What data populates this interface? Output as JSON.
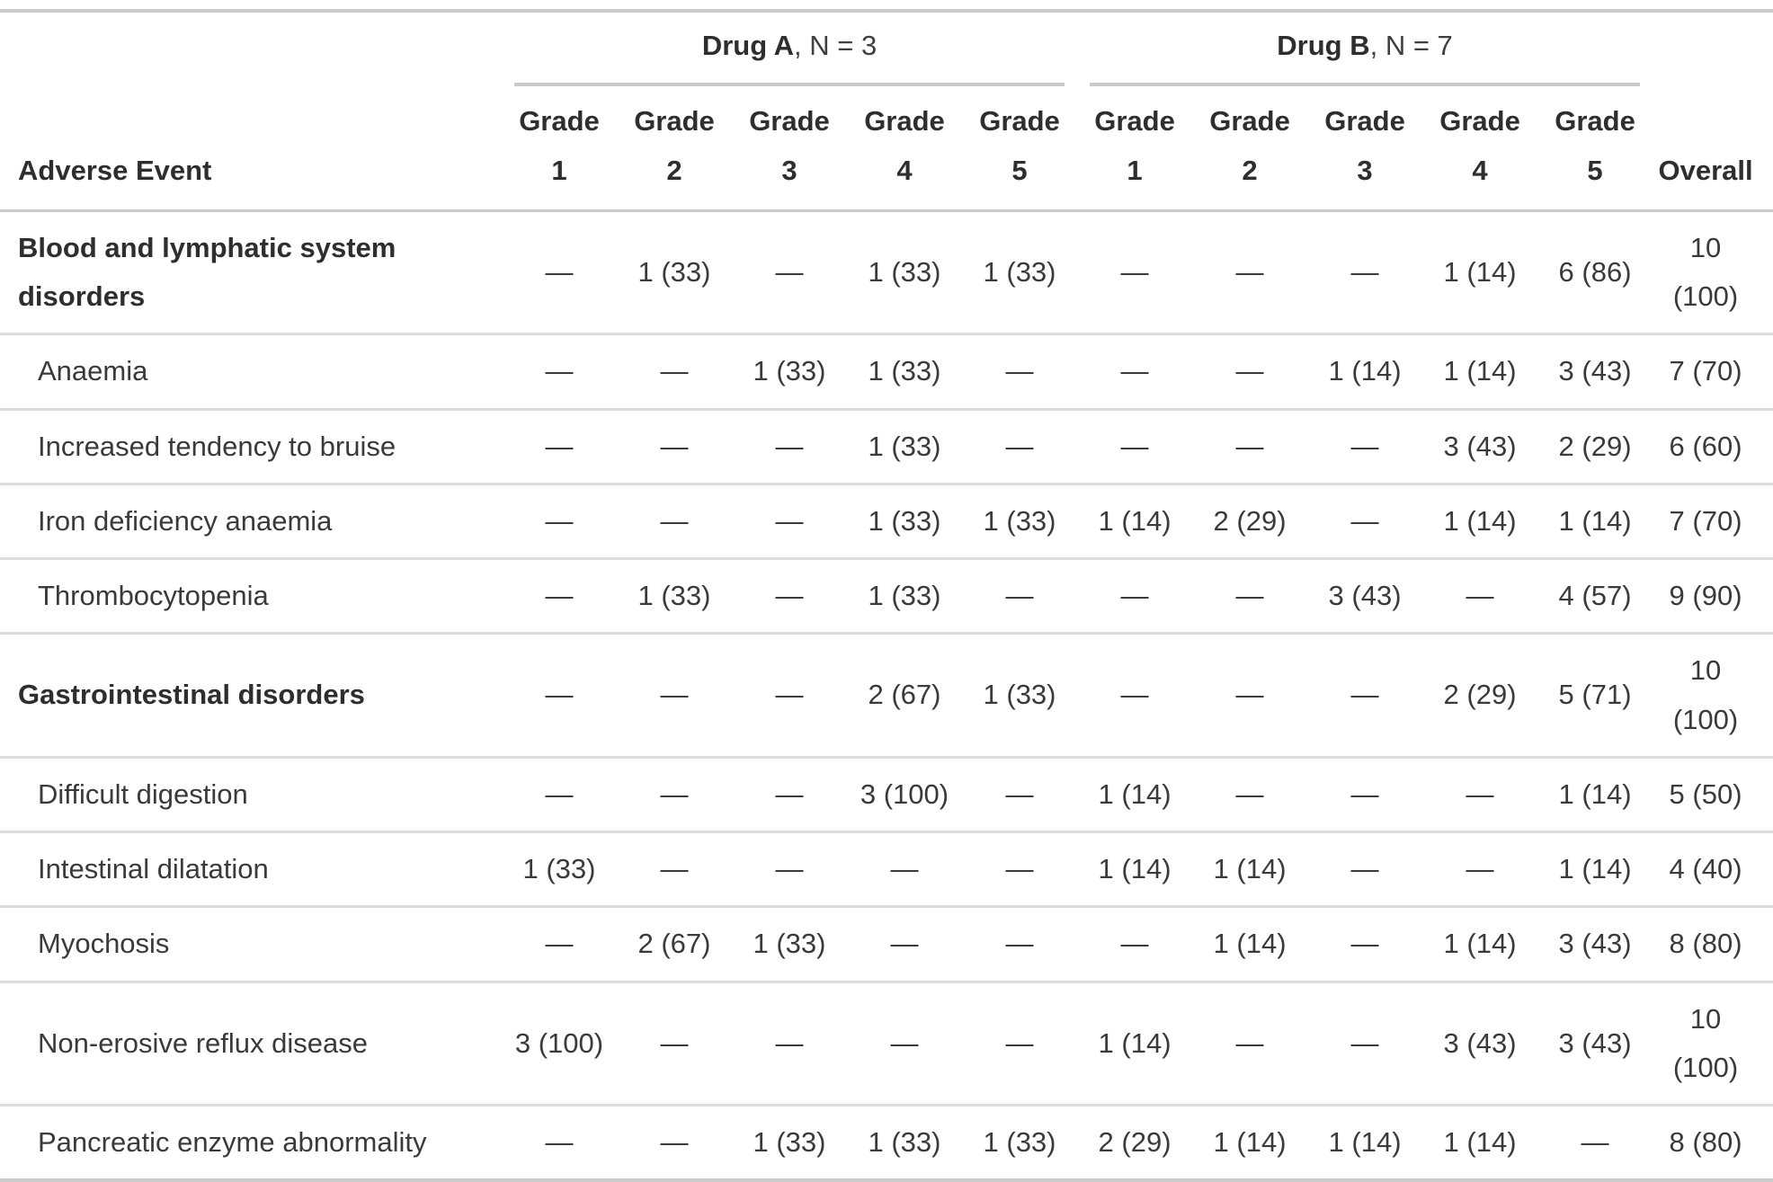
{
  "table": {
    "columns": {
      "row_label": "Adverse Event",
      "grade_labels": [
        "Grade 1",
        "Grade 2",
        "Grade 3",
        "Grade 4",
        "Grade 5"
      ],
      "overall": "Overall"
    },
    "spanners": [
      {
        "name": "Drug A",
        "n_label": ", N = 3"
      },
      {
        "name": "Drug B",
        "n_label": ", N = 7"
      }
    ],
    "rows": [
      {
        "type": "group",
        "label": "Blood and lymphatic system disorders",
        "drug_a": [
          "—",
          "1 (33)",
          "—",
          "1 (33)",
          "1 (33)"
        ],
        "drug_b": [
          "—",
          "—",
          "—",
          "1 (14)",
          "6 (86)"
        ],
        "overall": "10 (100)"
      },
      {
        "type": "sub",
        "label": "Anaemia",
        "drug_a": [
          "—",
          "—",
          "1 (33)",
          "1 (33)",
          "—"
        ],
        "drug_b": [
          "—",
          "—",
          "1 (14)",
          "1 (14)",
          "3 (43)"
        ],
        "overall": "7 (70)"
      },
      {
        "type": "sub",
        "label": "Increased tendency to bruise",
        "drug_a": [
          "—",
          "—",
          "—",
          "1 (33)",
          "—"
        ],
        "drug_b": [
          "—",
          "—",
          "—",
          "3 (43)",
          "2 (29)"
        ],
        "overall": "6 (60)"
      },
      {
        "type": "sub",
        "label": "Iron deficiency anaemia",
        "drug_a": [
          "—",
          "—",
          "—",
          "1 (33)",
          "1 (33)"
        ],
        "drug_b": [
          "1 (14)",
          "2 (29)",
          "—",
          "1 (14)",
          "1 (14)"
        ],
        "overall": "7 (70)"
      },
      {
        "type": "sub",
        "label": "Thrombocytopenia",
        "drug_a": [
          "—",
          "1 (33)",
          "—",
          "1 (33)",
          "—"
        ],
        "drug_b": [
          "—",
          "—",
          "3 (43)",
          "—",
          "4 (57)"
        ],
        "overall": "9 (90)"
      },
      {
        "type": "group",
        "label": "Gastrointestinal disorders",
        "drug_a": [
          "—",
          "—",
          "—",
          "2 (67)",
          "1 (33)"
        ],
        "drug_b": [
          "—",
          "—",
          "—",
          "2 (29)",
          "5 (71)"
        ],
        "overall": "10 (100)"
      },
      {
        "type": "sub",
        "label": "Difficult digestion",
        "drug_a": [
          "—",
          "—",
          "—",
          "3 (100)",
          "—"
        ],
        "drug_b": [
          "1 (14)",
          "—",
          "—",
          "—",
          "1 (14)"
        ],
        "overall": "5 (50)"
      },
      {
        "type": "sub",
        "label": "Intestinal dilatation",
        "drug_a": [
          "1 (33)",
          "—",
          "—",
          "—",
          "—"
        ],
        "drug_b": [
          "1 (14)",
          "1 (14)",
          "—",
          "—",
          "1 (14)"
        ],
        "overall": "4 (40)"
      },
      {
        "type": "sub",
        "label": "Myochosis",
        "drug_a": [
          "—",
          "2 (67)",
          "1 (33)",
          "—",
          "—"
        ],
        "drug_b": [
          "—",
          "1 (14)",
          "—",
          "1 (14)",
          "3 (43)"
        ],
        "overall": "8 (80)"
      },
      {
        "type": "sub",
        "label": "Non-erosive reflux disease",
        "drug_a": [
          "3 (100)",
          "—",
          "—",
          "—",
          "—"
        ],
        "drug_b": [
          "1 (14)",
          "—",
          "—",
          "3 (43)",
          "3 (43)"
        ],
        "overall": "10 (100)"
      },
      {
        "type": "sub",
        "label": "Pancreatic enzyme abnormality",
        "drug_a": [
          "—",
          "—",
          "1 (33)",
          "1 (33)",
          "1 (33)"
        ],
        "drug_b": [
          "2 (29)",
          "1 (14)",
          "1 (14)",
          "1 (14)",
          "—"
        ],
        "overall": "8 (80)"
      }
    ]
  },
  "colors": {
    "background": "#ffffff",
    "text": "#3a3a3a",
    "text_bold": "#2e2e2e",
    "border_strong": "#cbcbcb",
    "border_light": "#dcdcdc"
  }
}
